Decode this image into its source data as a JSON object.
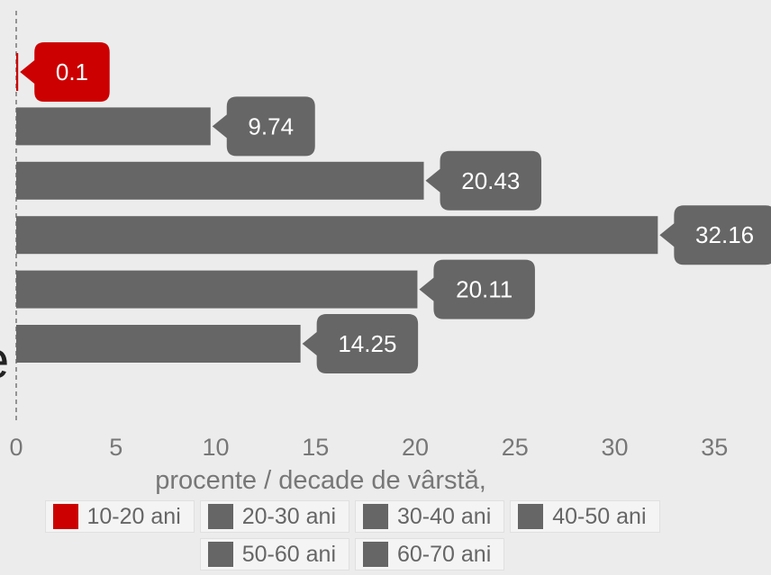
{
  "chart_data": {
    "type": "bar",
    "orientation": "horizontal",
    "categories": [
      "10-20 ani",
      "20-30 ani",
      "30-40 ani",
      "40-50 ani",
      "50-60 ani",
      "60-70 ani"
    ],
    "values": [
      0.1,
      9.74,
      20.43,
      32.16,
      20.11,
      14.25
    ],
    "value_labels": [
      "0.1",
      "9.74",
      "20.43",
      "32.16",
      "20.11",
      "14.25"
    ],
    "colors": [
      "#cc0000",
      "#666666",
      "#666666",
      "#666666",
      "#666666",
      "#666666"
    ],
    "xlabel": "procente / decade de vârstă,",
    "xlim": [
      0,
      35
    ],
    "xticks": [
      "0",
      "5",
      "10",
      "15",
      "20",
      "25",
      "30",
      "35"
    ],
    "grid": false,
    "legend_placement": "bottom",
    "partial_text": "e"
  },
  "legend": [
    {
      "label": "10-20 ani",
      "color": "#cc0000"
    },
    {
      "label": "20-30 ani",
      "color": "#666666"
    },
    {
      "label": "30-40 ani",
      "color": "#666666"
    },
    {
      "label": "40-50 ani",
      "color": "#666666"
    },
    {
      "label": "50-60 ani",
      "color": "#666666"
    },
    {
      "label": "60-70 ani",
      "color": "#666666"
    }
  ]
}
